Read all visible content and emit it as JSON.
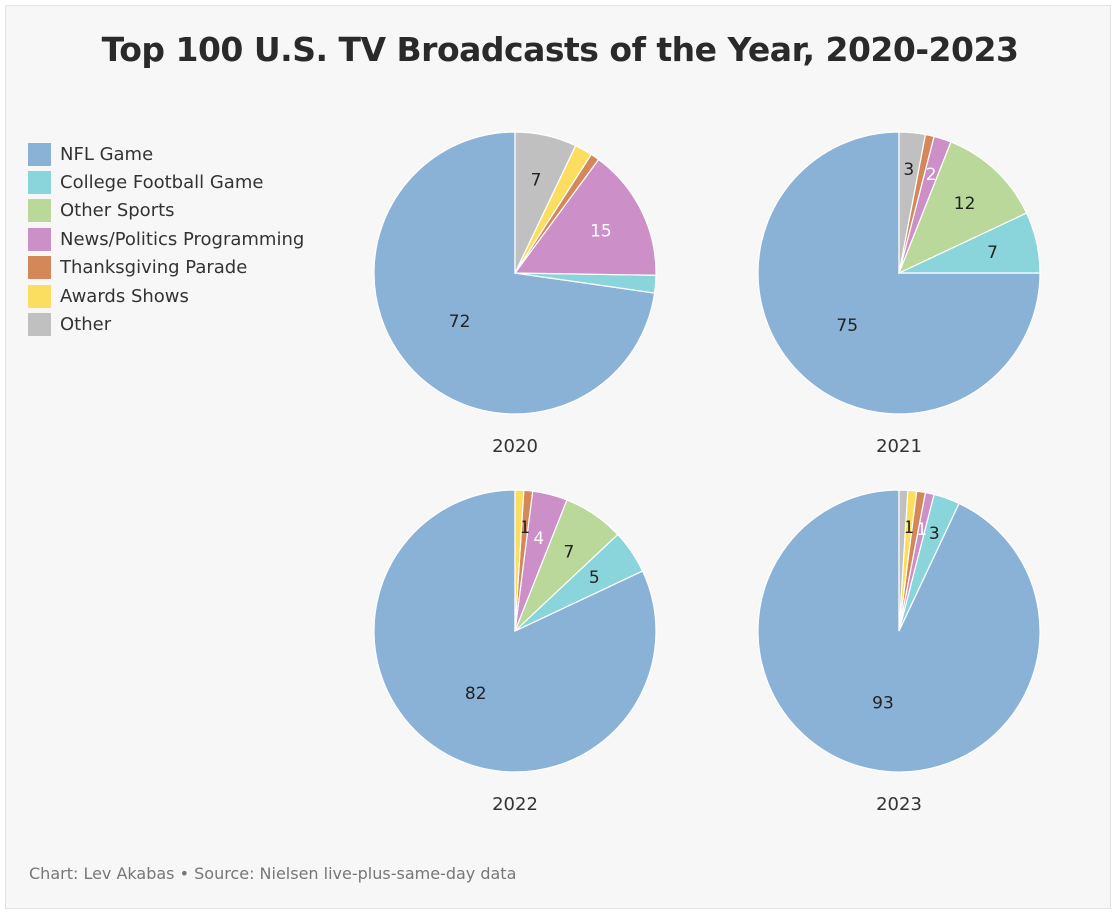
{
  "title": "Top 100 U.S. TV Broadcasts of the Year, 2020-2023",
  "footer": "Chart: Lev Akabas • Source: Nielsen live-plus-same-day data",
  "legend": [
    {
      "label": "NFL Game",
      "color": "#8ab2d7"
    },
    {
      "label": "College Football Game",
      "color": "#8ad5db"
    },
    {
      "label": "Other Sports",
      "color": "#b9d89a"
    },
    {
      "label": "News/Politics Programming",
      "color": "#cc8fc8"
    },
    {
      "label": "Thanksgiving Parade",
      "color": "#d4885a"
    },
    {
      "label": "Awards Shows",
      "color": "#fbdd5f"
    },
    {
      "label": "Other",
      "color": "#c0c0c0"
    }
  ],
  "chart_data": {
    "type": "pie",
    "title": "Top 100 U.S. TV Broadcasts of the Year, 2020-2023",
    "categories": [
      "NFL Game",
      "College Football Game",
      "Other Sports",
      "News/Politics Programming",
      "Thanksgiving Parade",
      "Awards Shows",
      "Other"
    ],
    "legend_position": "left",
    "series": [
      {
        "name": "2020",
        "values": [
          72,
          2,
          0,
          15,
          1,
          2,
          7
        ],
        "labels": [
          "72",
          "",
          "",
          "15",
          "",
          "",
          "7"
        ]
      },
      {
        "name": "2021",
        "values": [
          75,
          7,
          12,
          2,
          1,
          0,
          3
        ],
        "labels": [
          "75",
          "7",
          "12",
          "2",
          "",
          "",
          "3"
        ]
      },
      {
        "name": "2022",
        "values": [
          82,
          5,
          7,
          4,
          1,
          1,
          0
        ],
        "labels": [
          "82",
          "5",
          "7",
          "4",
          "1",
          "",
          ""
        ]
      },
      {
        "name": "2023",
        "values": [
          93,
          3,
          0,
          1,
          1,
          1,
          1
        ],
        "labels": [
          "93",
          "3",
          "",
          "1",
          "",
          "1",
          ""
        ]
      }
    ]
  }
}
